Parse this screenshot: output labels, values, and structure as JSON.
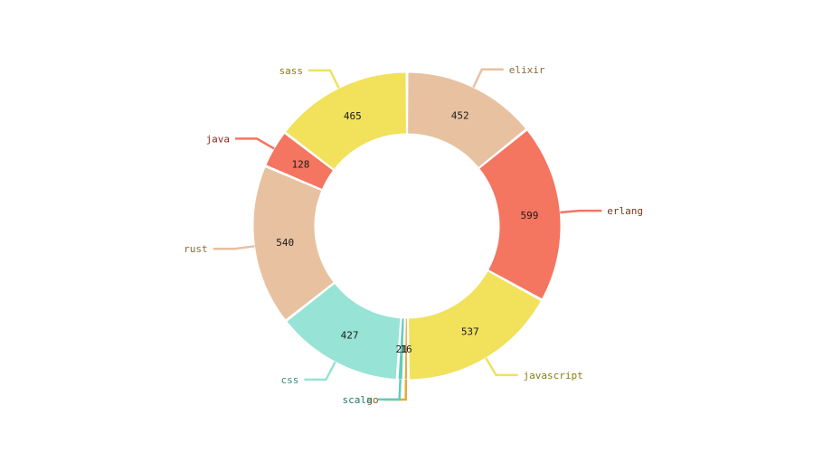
{
  "chart_data": {
    "type": "pie",
    "variant": "donut",
    "title": "",
    "legend": "none",
    "slices": [
      {
        "name": "elixir",
        "value": 452,
        "color": "#e8c1a0",
        "label_color": "#8a6a3a"
      },
      {
        "name": "erlang",
        "value": 599,
        "color": "#f47560",
        "label_color": "#8a2a1a"
      },
      {
        "name": "javascript",
        "value": 537,
        "color": "#f1e15b",
        "label_color": "#8a7a10"
      },
      {
        "name": "go",
        "value": 16,
        "color": "#e8a838",
        "label_color": "#8a5a10"
      },
      {
        "name": "scala",
        "value": 21,
        "color": "#61cdbb",
        "label_color": "#1f7a6a"
      },
      {
        "name": "css",
        "value": 427,
        "color": "#97e3d5",
        "label_color": "#3a8a7a"
      },
      {
        "name": "rust",
        "value": 540,
        "color": "#e8c1a0",
        "label_color": "#8a6a3a"
      },
      {
        "name": "java",
        "value": 128,
        "color": "#f47560",
        "label_color": "#8a2a1a"
      },
      {
        "name": "sass",
        "value": 465,
        "color": "#f1e15b",
        "label_color": "#8a7a10"
      }
    ]
  }
}
